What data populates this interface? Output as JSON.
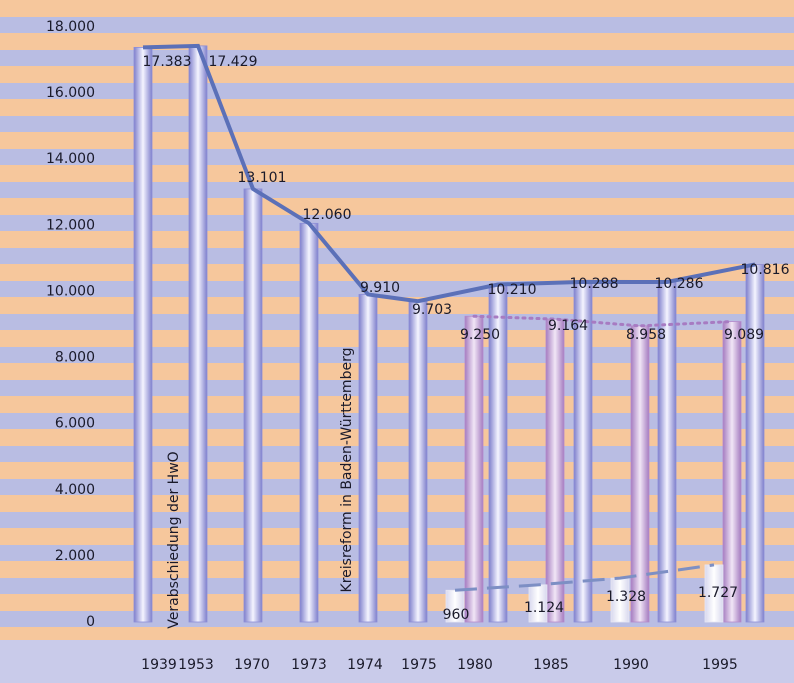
{
  "chart_data": {
    "type": "bar",
    "categories": [
      "1939",
      "1953",
      "1970",
      "1973",
      "1974",
      "1975",
      "1980",
      "1985",
      "1990",
      "1995"
    ],
    "series": [
      {
        "color": "#8c8ed8",
        "values": [
          17383,
          17429,
          13101,
          12060,
          9910,
          9703,
          10210,
          10288,
          10286,
          10816
        ],
        "value_labels": [
          "17.383",
          "17.429",
          "13.101",
          "12.060",
          "9.910",
          "9.703",
          "10.210",
          "10.288",
          "10.286",
          "10.816"
        ]
      },
      {
        "color": "#b58acb",
        "values": [
          null,
          null,
          null,
          null,
          null,
          null,
          9250,
          9164,
          8958,
          9089
        ],
        "value_labels": [
          null,
          null,
          null,
          null,
          null,
          null,
          "9.250",
          "9.164",
          "8.958",
          "9.089"
        ]
      },
      {
        "color": "#e6e6f4",
        "values": [
          null,
          null,
          null,
          null,
          null,
          null,
          960,
          1124,
          1328,
          1727
        ],
        "value_labels": [
          null,
          null,
          null,
          null,
          null,
          null,
          "960",
          "1.124",
          "1.328",
          "1.727"
        ]
      }
    ],
    "annotations": [
      "Verabschiedung der HwO",
      "Kreisreform in Baden-Württemberg"
    ],
    "ylim": [
      0,
      18000
    ],
    "yticks": [
      0,
      {
        "value": 2000,
        "label": "2.000"
      },
      {
        "value": 4000,
        "label": "4.000"
      },
      {
        "value": 6000,
        "label": "6.000"
      },
      {
        "value": 8000,
        "label": "8.000"
      },
      {
        "value": 10000,
        "label": "10.000"
      },
      {
        "value": 12000,
        "label": "12.000"
      },
      {
        "value": 14000,
        "label": "14.000"
      },
      {
        "value": 16000,
        "label": "16.000"
      },
      {
        "value": 18000,
        "label": "18.000"
      }
    ]
  }
}
